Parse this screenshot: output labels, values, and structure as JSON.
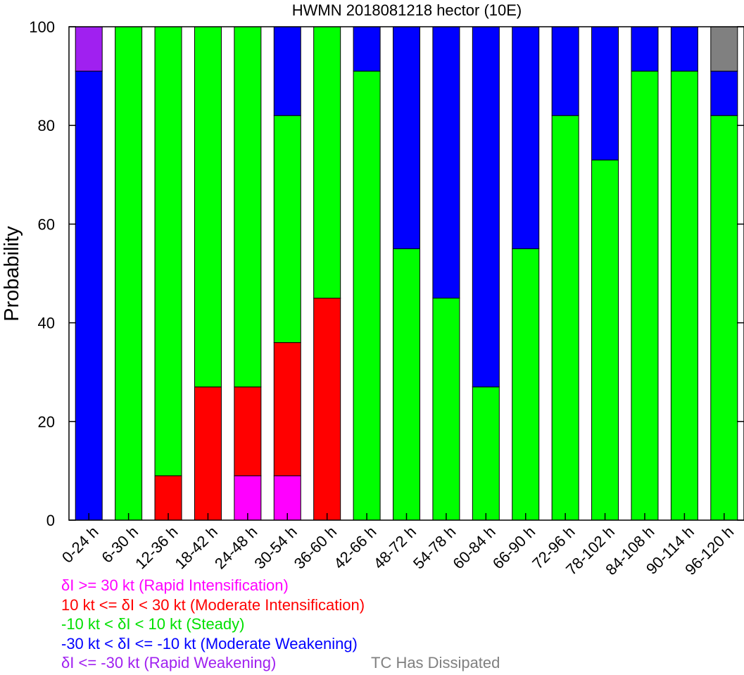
{
  "chart_data": {
    "type": "bar",
    "stacked": true,
    "title": "HWMN 2018081218 hector (10E)",
    "xlabel": "",
    "ylabel": "Probability",
    "ylim": [
      0,
      100
    ],
    "yticks": [
      "0",
      "20",
      "40",
      "60",
      "80",
      "100"
    ],
    "grid": false,
    "categories": [
      "0-24 h",
      "6-30 h",
      "12-36 h",
      "18-42 h",
      "24-48 h",
      "30-54 h",
      "36-60 h",
      "42-66 h",
      "48-72 h",
      "54-78 h",
      "60-84 h",
      "66-90 h",
      "72-96 h",
      "78-102 h",
      "84-108 h",
      "90-114 h",
      "96-120 h"
    ],
    "series": [
      {
        "key": "ri",
        "color": "#ff00ff",
        "values": [
          0,
          0,
          0,
          0,
          9,
          9,
          0,
          0,
          0,
          0,
          0,
          0,
          0,
          0,
          0,
          0,
          0
        ]
      },
      {
        "key": "mi",
        "color": "#ff0000",
        "values": [
          0,
          0,
          9,
          27,
          18,
          27,
          45,
          0,
          0,
          0,
          0,
          0,
          0,
          0,
          0,
          0,
          0
        ]
      },
      {
        "key": "st",
        "color": "#00ff00",
        "values": [
          0,
          100,
          91,
          73,
          73,
          46,
          55,
          91,
          55,
          45,
          27,
          55,
          82,
          73,
          91,
          91,
          82
        ]
      },
      {
        "key": "mw",
        "color": "#0000ff",
        "values": [
          91,
          0,
          0,
          0,
          0,
          18,
          0,
          9,
          45,
          55,
          73,
          45,
          18,
          27,
          9,
          9,
          9
        ]
      },
      {
        "key": "rw",
        "color": "#a020f0",
        "values": [
          9,
          0,
          0,
          0,
          0,
          0,
          0,
          0,
          0,
          0,
          0,
          0,
          0,
          0,
          0,
          0,
          0
        ]
      },
      {
        "key": "td",
        "color": "#808080",
        "values": [
          0,
          0,
          0,
          0,
          0,
          0,
          0,
          0,
          0,
          0,
          0,
          0,
          0,
          0,
          0,
          0,
          9
        ]
      }
    ]
  },
  "legend": {
    "ri": {
      "label": "δI >= 30 kt (Rapid Intensification)",
      "color": "#ff00ff"
    },
    "mi": {
      "label": "10 kt <= δI < 30 kt (Moderate Intensification)",
      "color": "#ff0000"
    },
    "st": {
      "label": "-10 kt < δI < 10 kt (Steady)",
      "color": "#00ff00"
    },
    "mw": {
      "label": "-30 kt < δI <= -10 kt (Moderate Weakening)",
      "color": "#0000ff"
    },
    "rw": {
      "label": "δI <= -30 kt (Rapid Weakening)",
      "color": "#a020f0"
    },
    "td": {
      "label": "TC Has Dissipated",
      "color": "#808080"
    }
  }
}
